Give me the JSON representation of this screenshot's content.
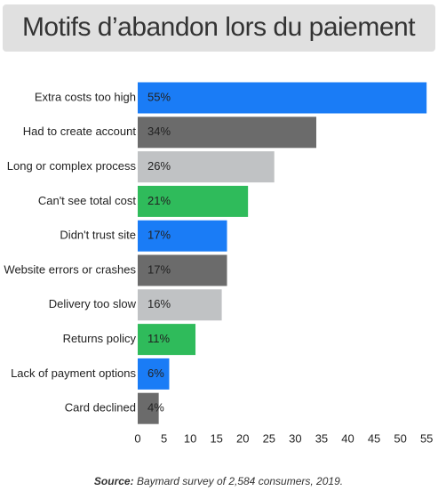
{
  "chart_data": {
    "type": "bar",
    "orientation": "horizontal",
    "title": "Motifs d’abandon lors du paiement",
    "categories": [
      "Extra costs too high",
      "Had to create account",
      "Long or complex process",
      "Can't see total cost",
      "Didn't trust site",
      "Website errors or crashes",
      "Delivery too slow",
      "Returns policy",
      "Lack of payment options",
      "Card declined"
    ],
    "values": [
      55,
      34,
      26,
      21,
      17,
      17,
      16,
      11,
      6,
      4
    ],
    "value_labels": [
      "55%",
      "34%",
      "26%",
      "21%",
      "17%",
      "17%",
      "16%",
      "11%",
      "6%",
      "4%"
    ],
    "colors": [
      "#1a7cf6",
      "#6b6b6b",
      "#c0c2c4",
      "#2fbb5b",
      "#1a7cf6",
      "#6b6b6b",
      "#c0c2c4",
      "#2fbb5b",
      "#1a7cf6",
      "#6b6b6b"
    ],
    "xlim": [
      0,
      57
    ],
    "xticks": [
      0,
      5,
      10,
      15,
      20,
      25,
      30,
      35,
      40,
      45,
      50,
      55
    ],
    "source_label": "Source:",
    "source": "Baymard survey of 2,584 consumers, 2019."
  }
}
